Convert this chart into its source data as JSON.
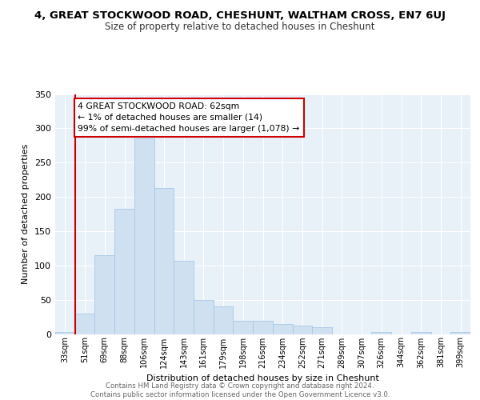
{
  "title": "4, GREAT STOCKWOOD ROAD, CHESHUNT, WALTHAM CROSS, EN7 6UJ",
  "subtitle": "Size of property relative to detached houses in Cheshunt",
  "xlabel": "Distribution of detached houses by size in Cheshunt",
  "ylabel": "Number of detached properties",
  "categories": [
    "33sqm",
    "51sqm",
    "69sqm",
    "88sqm",
    "106sqm",
    "124sqm",
    "143sqm",
    "161sqm",
    "179sqm",
    "198sqm",
    "216sqm",
    "234sqm",
    "252sqm",
    "271sqm",
    "289sqm",
    "307sqm",
    "326sqm",
    "344sqm",
    "362sqm",
    "381sqm",
    "399sqm"
  ],
  "values": [
    3,
    30,
    115,
    183,
    285,
    213,
    107,
    50,
    40,
    19,
    19,
    15,
    12,
    10,
    0,
    0,
    3,
    0,
    3,
    0,
    3
  ],
  "bar_color": "#cfe0f0",
  "bar_edge_color": "#a8c8e8",
  "highlight_color": "#cc0000",
  "vertical_line_index": 1,
  "annotation_text": "4 GREAT STOCKWOOD ROAD: 62sqm\n← 1% of detached houses are smaller (14)\n99% of semi-detached houses are larger (1,078) →",
  "annotation_box_color": "#ffffff",
  "annotation_box_edge": "#cc0000",
  "ylim": [
    0,
    350
  ],
  "yticks": [
    0,
    50,
    100,
    150,
    200,
    250,
    300,
    350
  ],
  "footer": "Contains HM Land Registry data © Crown copyright and database right 2024.\nContains public sector information licensed under the Open Government Licence v3.0.",
  "background_color": "#ffffff",
  "plot_bg_color": "#e8f0f8",
  "grid_color": "#ffffff"
}
